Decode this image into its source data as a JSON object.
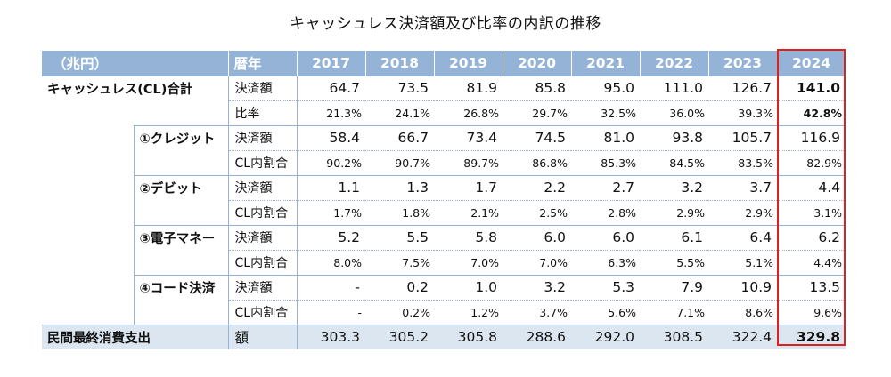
{
  "title": "キャッシュレス決済額及び比率の内訳の推移",
  "header": {
    "unit": "（兆円）",
    "year_label": "暦年",
    "years": [
      "2017",
      "2018",
      "2019",
      "2020",
      "2021",
      "2022",
      "2023",
      "2024"
    ]
  },
  "cashless_total": {
    "label": "キャッシュレス(CL)合計",
    "amount_label": "決済額",
    "amount": [
      "64.7",
      "73.5",
      "81.9",
      "85.8",
      "95.0",
      "111.0",
      "126.7",
      "141.0"
    ],
    "ratio_label": "比率",
    "ratio": [
      "21.3%",
      "24.1%",
      "26.8%",
      "29.7%",
      "32.5%",
      "36.0%",
      "39.3%",
      "42.8%"
    ]
  },
  "breakdown": [
    {
      "label": "①クレジット",
      "amount_label": "決済額",
      "amount": [
        "58.4",
        "66.7",
        "73.4",
        "74.5",
        "81.0",
        "93.8",
        "105.7",
        "116.9"
      ],
      "share_label": "CL内割合",
      "share": [
        "90.2%",
        "90.7%",
        "89.7%",
        "86.8%",
        "85.3%",
        "84.5%",
        "83.5%",
        "82.9%"
      ]
    },
    {
      "label": "②デビット",
      "amount_label": "決済額",
      "amount": [
        "1.1",
        "1.3",
        "1.7",
        "2.2",
        "2.7",
        "3.2",
        "3.7",
        "4.4"
      ],
      "share_label": "CL内割合",
      "share": [
        "1.7%",
        "1.8%",
        "2.1%",
        "2.5%",
        "2.8%",
        "2.9%",
        "2.9%",
        "3.1%"
      ]
    },
    {
      "label": "③電子マネー",
      "amount_label": "決済額",
      "amount": [
        "5.2",
        "5.5",
        "5.8",
        "6.0",
        "6.0",
        "6.1",
        "6.4",
        "6.2"
      ],
      "share_label": "CL内割合",
      "share": [
        "8.0%",
        "7.5%",
        "7.0%",
        "7.0%",
        "6.3%",
        "5.5%",
        "5.1%",
        "4.4%"
      ]
    },
    {
      "label": "④コード決済",
      "amount_label": "決済額",
      "amount": [
        "-",
        "0.2",
        "1.0",
        "3.2",
        "5.3",
        "7.9",
        "10.9",
        "13.5"
      ],
      "share_label": "CL内割合",
      "share": [
        "-",
        "0.2%",
        "1.2%",
        "3.7%",
        "5.6%",
        "7.1%",
        "8.6%",
        "9.6%"
      ]
    }
  ],
  "consumption": {
    "label": "民間最終消費支出",
    "metric_label": "額",
    "amount": [
      "303.3",
      "305.2",
      "305.8",
      "288.6",
      "292.0",
      "308.5",
      "322.4",
      "329.8"
    ]
  },
  "colors": {
    "header_bg": "#95b3d7",
    "footer_bg": "#dce6f1",
    "highlight_border": "#e0201f"
  }
}
